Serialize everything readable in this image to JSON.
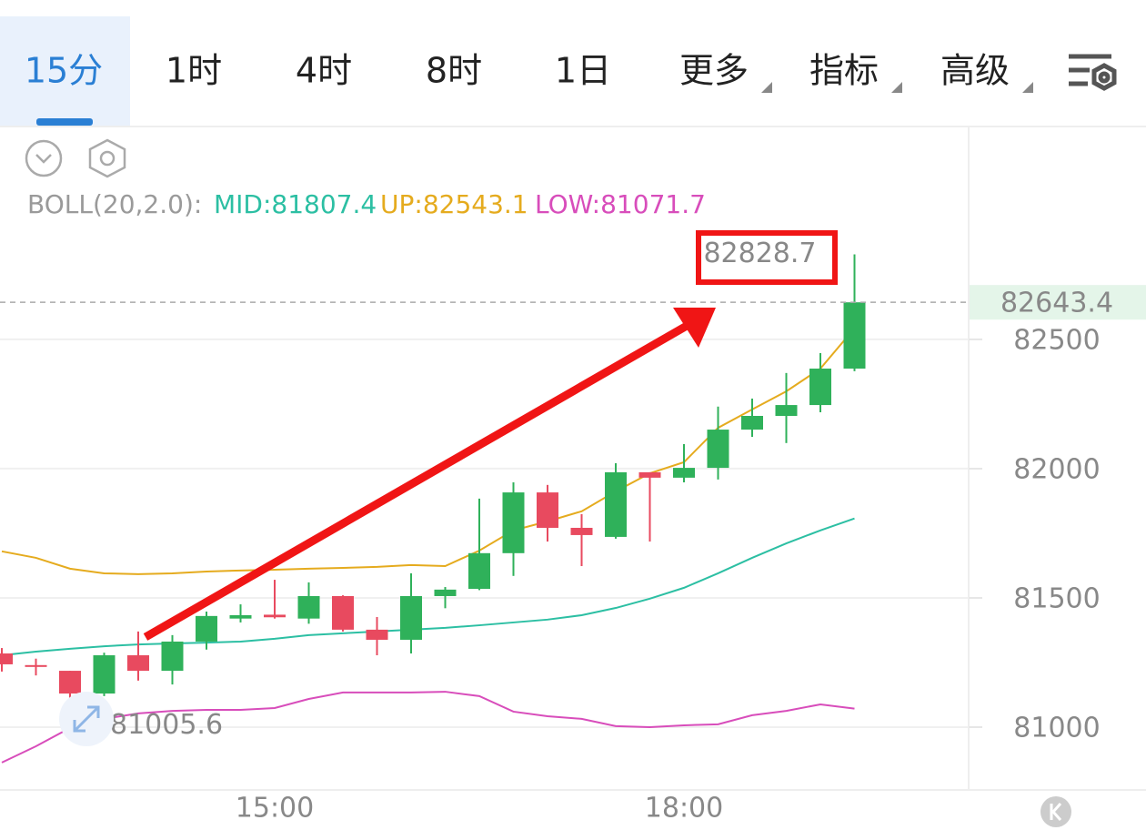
{
  "tabs": [
    "15分",
    "1时",
    "4时",
    "8时",
    "1日",
    "更多",
    "指标",
    "高级"
  ],
  "chart_data": {
    "type": "candlestick",
    "indicator": "BOLL(20,2.0):",
    "categories": [
      null,
      null,
      null,
      null,
      null,
      null,
      null,
      null,
      "15:00",
      null,
      null,
      null,
      null,
      null,
      null,
      null,
      null,
      null,
      null,
      null,
      "18:00",
      null,
      null,
      null,
      null,
      null
    ],
    "open": [
      81285,
      81240,
      81218,
      81130,
      81278,
      81218,
      81331,
      81420,
      81435,
      81420,
      81507,
      81377,
      81338,
      81507,
      81535,
      81673,
      81908,
      81771,
      81736,
      81986,
      81965,
      82003,
      82151,
      82204,
      82246,
      82387
    ],
    "high": [
      81306,
      81265,
      81218,
      81288,
      81370,
      81356,
      81447,
      81475,
      81570,
      81560,
      81510,
      81426,
      81595,
      81542,
      81884,
      81947,
      81937,
      81824,
      82021,
      81986,
      82095,
      82240,
      82271,
      82370,
      82447,
      82828.7
    ],
    "low": [
      81215,
      81200,
      81005.6,
      81120,
      81180,
      81165,
      81300,
      81405,
      81420,
      81400,
      81370,
      81278,
      81285,
      81460,
      81530,
      81585,
      81718,
      81623,
      81729,
      81718,
      81947,
      81958,
      82123,
      82099,
      82218,
      82377
    ],
    "close": [
      81243,
      81233,
      81130,
      81278,
      81218,
      81331,
      81430,
      81433,
      81425,
      81507,
      81377,
      81338,
      81507,
      81532,
      81673,
      81908,
      81771,
      81743,
      81986,
      81965,
      82003,
      82151,
      82204,
      82246,
      82387,
      82643.4
    ],
    "up_color": "#2fb15a",
    "down_color": "#e84a5f",
    "series": [
      {
        "name": "MID:81807.4",
        "color": "#2cbfa3",
        "values": [
          81278,
          81292,
          81303,
          81313,
          81320,
          81324,
          81327,
          81331,
          81342,
          81356,
          81363,
          81370,
          81377,
          81384,
          81394,
          81405,
          81416,
          81433,
          81461,
          81497,
          81539,
          81595,
          81655,
          81711,
          81761,
          81807.4
        ]
      },
      {
        "name": "UP:82543.1",
        "color": "#e5ab1e",
        "values": [
          81680,
          81655,
          81613,
          81595,
          81592,
          81595,
          81602,
          81606,
          81609,
          81613,
          81616,
          81620,
          81627,
          81623,
          81683,
          81761,
          81796,
          81835,
          81912,
          81982,
          82025,
          82158,
          82229,
          82299,
          82387,
          82543.1
        ]
      },
      {
        "name": "LOW:81071.7",
        "color": "#d84dbb",
        "values": [
          80863,
          80926,
          80997,
          81032,
          81053,
          81063,
          81067,
          81067,
          81074,
          81109,
          81134,
          81134,
          81134,
          81137,
          81120,
          81060,
          81042,
          81032,
          81004,
          81000,
          81007,
          81011,
          81046,
          81063,
          81088,
          81071.7
        ]
      }
    ],
    "ylim": [
      80757,
      83320
    ],
    "yticks": [
      81000,
      81500,
      82000,
      82500
    ],
    "grid": true
  }
}
